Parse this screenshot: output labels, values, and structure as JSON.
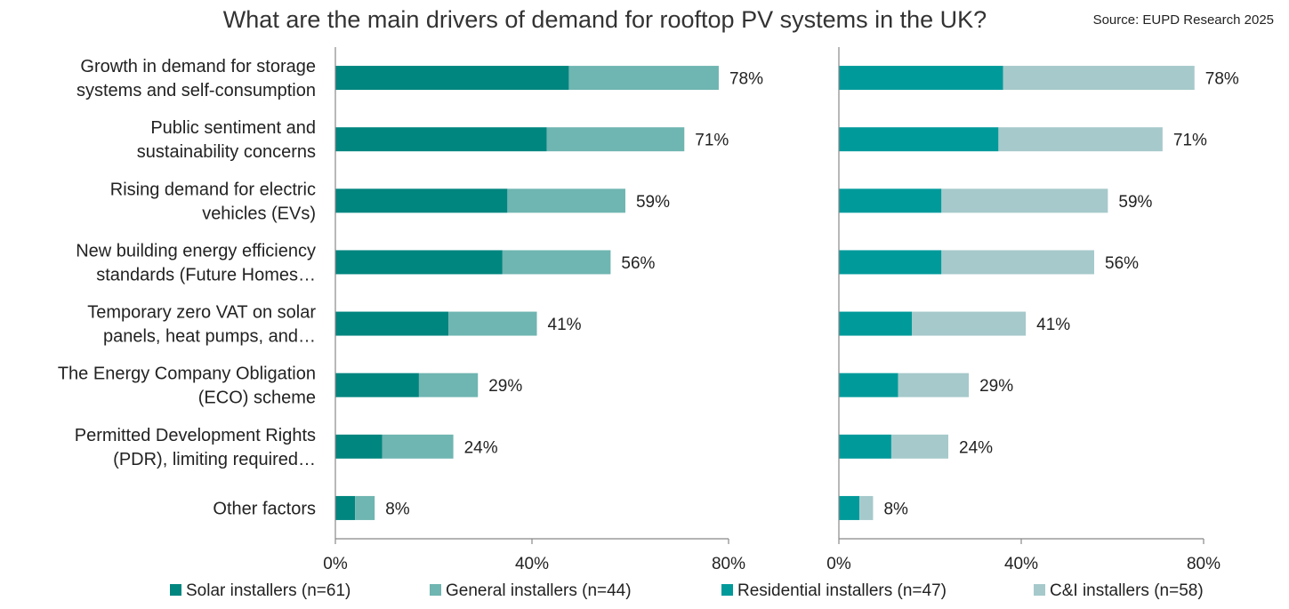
{
  "chart_data": {
    "type": "bar",
    "stacked": true,
    "orientation": "horizontal",
    "title": "What are the main drivers of demand for rooftop PV systems in the UK?",
    "source": "Source: EUPD Research 2025",
    "categories": [
      [
        "Growth in demand for storage",
        "systems and self-consumption"
      ],
      [
        "Public sentiment and",
        "sustainability concerns"
      ],
      [
        "Rising demand for electric",
        "vehicles (EVs)"
      ],
      [
        "New building energy efficiency",
        "standards (Future Homes…"
      ],
      [
        "Temporary zero VAT on solar",
        "panels, heat pumps, and…"
      ],
      [
        "The Energy Company Obligation",
        "(ECO) scheme"
      ],
      [
        "Permitted Development Rights",
        "(PDR), limiting required…"
      ],
      [
        "Other factors"
      ]
    ],
    "panels": [
      {
        "xlim": [
          0,
          80
        ],
        "ticks": [
          "0%",
          "40%",
          "80%"
        ],
        "totals": [
          "78%",
          "71%",
          "59%",
          "56%",
          "41%",
          "29%",
          "24%",
          "8%"
        ],
        "series": [
          {
            "name": "Solar installers (n=61)",
            "color": "#00857f",
            "values": [
              47.5,
              43,
              35,
              34,
              23,
              17,
              9.5,
              4
            ]
          },
          {
            "name": "General installers (n=44)",
            "color": "#6fb5b1",
            "values": [
              30.5,
              28,
              24,
              22,
              18,
              12,
              14.5,
              4
            ]
          }
        ]
      },
      {
        "xlim": [
          0,
          80
        ],
        "ticks": [
          "0%",
          "40%",
          "80%"
        ],
        "totals": [
          "78%",
          "71%",
          "59%",
          "56%",
          "41%",
          "29%",
          "24%",
          "8%"
        ],
        "series": [
          {
            "name": "Residential installers (n=47)",
            "color": "#009a9b",
            "values": [
              36,
              35,
              22.5,
              22.5,
              16,
              13,
              11.5,
              4.5
            ]
          },
          {
            "name": "C&I installers (n=58)",
            "color": "#a6c9cb",
            "values": [
              42,
              36,
              36.5,
              33.5,
              25,
              15.5,
              12.5,
              3
            ]
          }
        ]
      }
    ]
  }
}
